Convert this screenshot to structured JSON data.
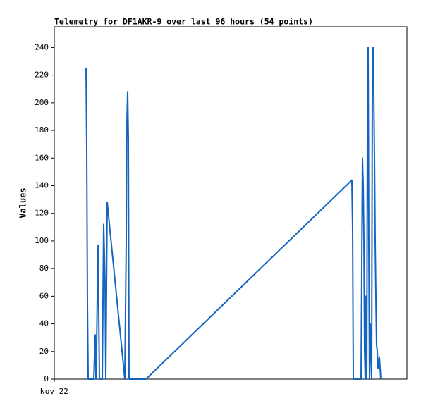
{
  "chart_data": {
    "type": "line",
    "title": "Telemetry for DF1AKR-9 over last 96 hours (54 points)",
    "y_label": "Values",
    "x": [
      8.64,
      8.83,
      9.02,
      9.22,
      10.75,
      11.14,
      11.33,
      11.52,
      11.9,
      12.1,
      12.29,
      13.06,
      13.44,
      13.82,
      14.02,
      14.4,
      19.2,
      19.58,
      19.78,
      19.97,
      20.16,
      20.35,
      24.96,
      81.02,
      81.22,
      81.41,
      83.52,
      83.9,
      84.1,
      84.29,
      84.48,
      84.67,
      84.86,
      85.06,
      85.25,
      85.44,
      85.63,
      85.82,
      86.02,
      86.21,
      86.4,
      86.59,
      86.78,
      86.98,
      87.17,
      87.36,
      87.55,
      87.74,
      87.94,
      88.13,
      88.32,
      88.51,
      88.7,
      88.9
    ],
    "series": [
      {
        "name": "Values",
        "color": "#1565c0",
        "values": [
          225,
          168,
          56,
          0,
          0,
          32,
          0,
          24,
          97,
          48,
          0,
          0,
          112,
          70,
          0,
          128,
          0,
          100,
          187,
          208,
          174,
          0,
          0,
          144,
          108,
          0,
          0,
          160,
          140,
          100,
          20,
          0,
          60,
          0,
          180,
          240,
          100,
          0,
          40,
          20,
          0,
          210,
          240,
          208,
          160,
          100,
          60,
          25,
          20,
          8,
          12,
          16,
          8,
          0
        ]
      }
    ],
    "xlim": [
      0,
      96
    ],
    "xticks": [
      {
        "value": 0,
        "label": "Nov 22"
      }
    ],
    "ylim": [
      0,
      255
    ],
    "yticks": [
      0,
      20,
      40,
      60,
      80,
      100,
      120,
      140,
      160,
      180,
      200,
      220,
      240
    ]
  }
}
